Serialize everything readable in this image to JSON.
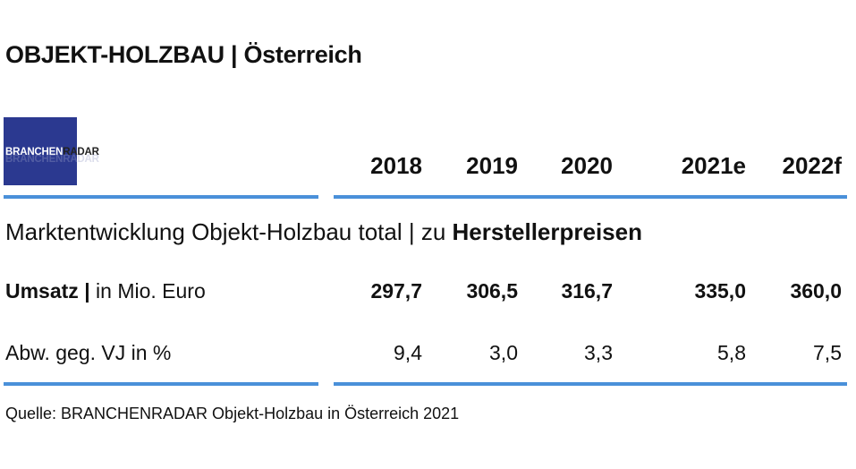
{
  "title": "OBJEKT-HOLZBAU | Österreich",
  "logo": {
    "part1": "BRANCHEN",
    "part2": "RADAR"
  },
  "years": [
    "2018",
    "2019",
    "2020",
    "2021e",
    "2022f"
  ],
  "subtitle": {
    "prefix": "Marktentwicklung Objekt-Holzbau total | zu ",
    "bold": "Herstellerpreisen"
  },
  "rows": [
    {
      "label_bold": "Umsatz |",
      "label_rest": " in Mio. Euro",
      "values": [
        "297,7",
        "306,5",
        "316,7",
        "335,0",
        "360,0"
      ]
    },
    {
      "label_bold": "",
      "label_rest": "Abw. geg. VJ in %",
      "values": [
        "9,4",
        "3,0",
        "3,3",
        "5,8",
        "7,5"
      ]
    }
  ],
  "source": "Quelle: BRANCHENRADAR Objekt-Holzbau in Österreich 2021",
  "colors": {
    "accent": "#4a90d9",
    "logo_bg": "#2b3990"
  }
}
